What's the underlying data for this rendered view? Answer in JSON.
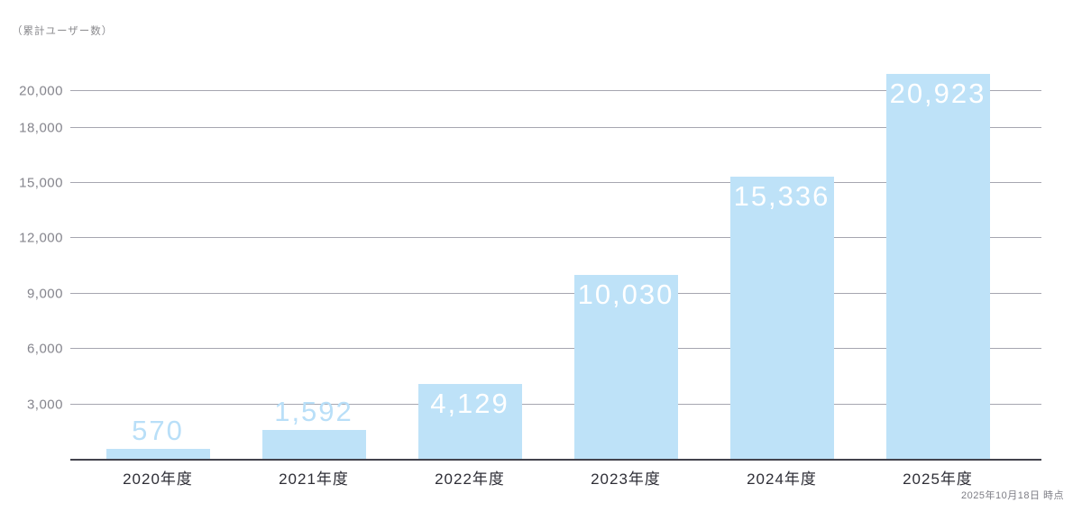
{
  "title": "（累計ユーザー数）",
  "footnote": "2025年10月18日 時点",
  "colors": {
    "bar_fill": "#bee2f8",
    "value_label_inside": "#ffffff",
    "value_label_outside": "#b9dff8",
    "gridline": "#a6a6b0",
    "axis_line": "#43434d",
    "y_tick_text": "#85858d",
    "x_tick_text": "#2e2e36",
    "annotation_text": "#8a8a8e"
  },
  "chart_data": {
    "type": "bar",
    "title": "（累計ユーザー数）",
    "xlabel": "",
    "ylabel": "累計ユーザー数",
    "categories": [
      "2020年度",
      "2021年度",
      "2022年度",
      "2023年度",
      "2024年度",
      "2025年度"
    ],
    "values": [
      570,
      1592,
      4129,
      10030,
      15336,
      20923
    ],
    "value_labels": [
      "570",
      "1,592",
      "4,129",
      "10,030",
      "15,336",
      "20,923"
    ],
    "y_ticks": [
      3000,
      6000,
      9000,
      12000,
      15000,
      18000,
      20000
    ],
    "y_tick_labels": [
      "3,000",
      "6,000",
      "9,000",
      "12,000",
      "15,000",
      "18,000",
      "20,000"
    ],
    "ylim": [
      0,
      21500
    ],
    "grid": true,
    "legend": false,
    "annotation": "2025年10月18日 時点"
  }
}
